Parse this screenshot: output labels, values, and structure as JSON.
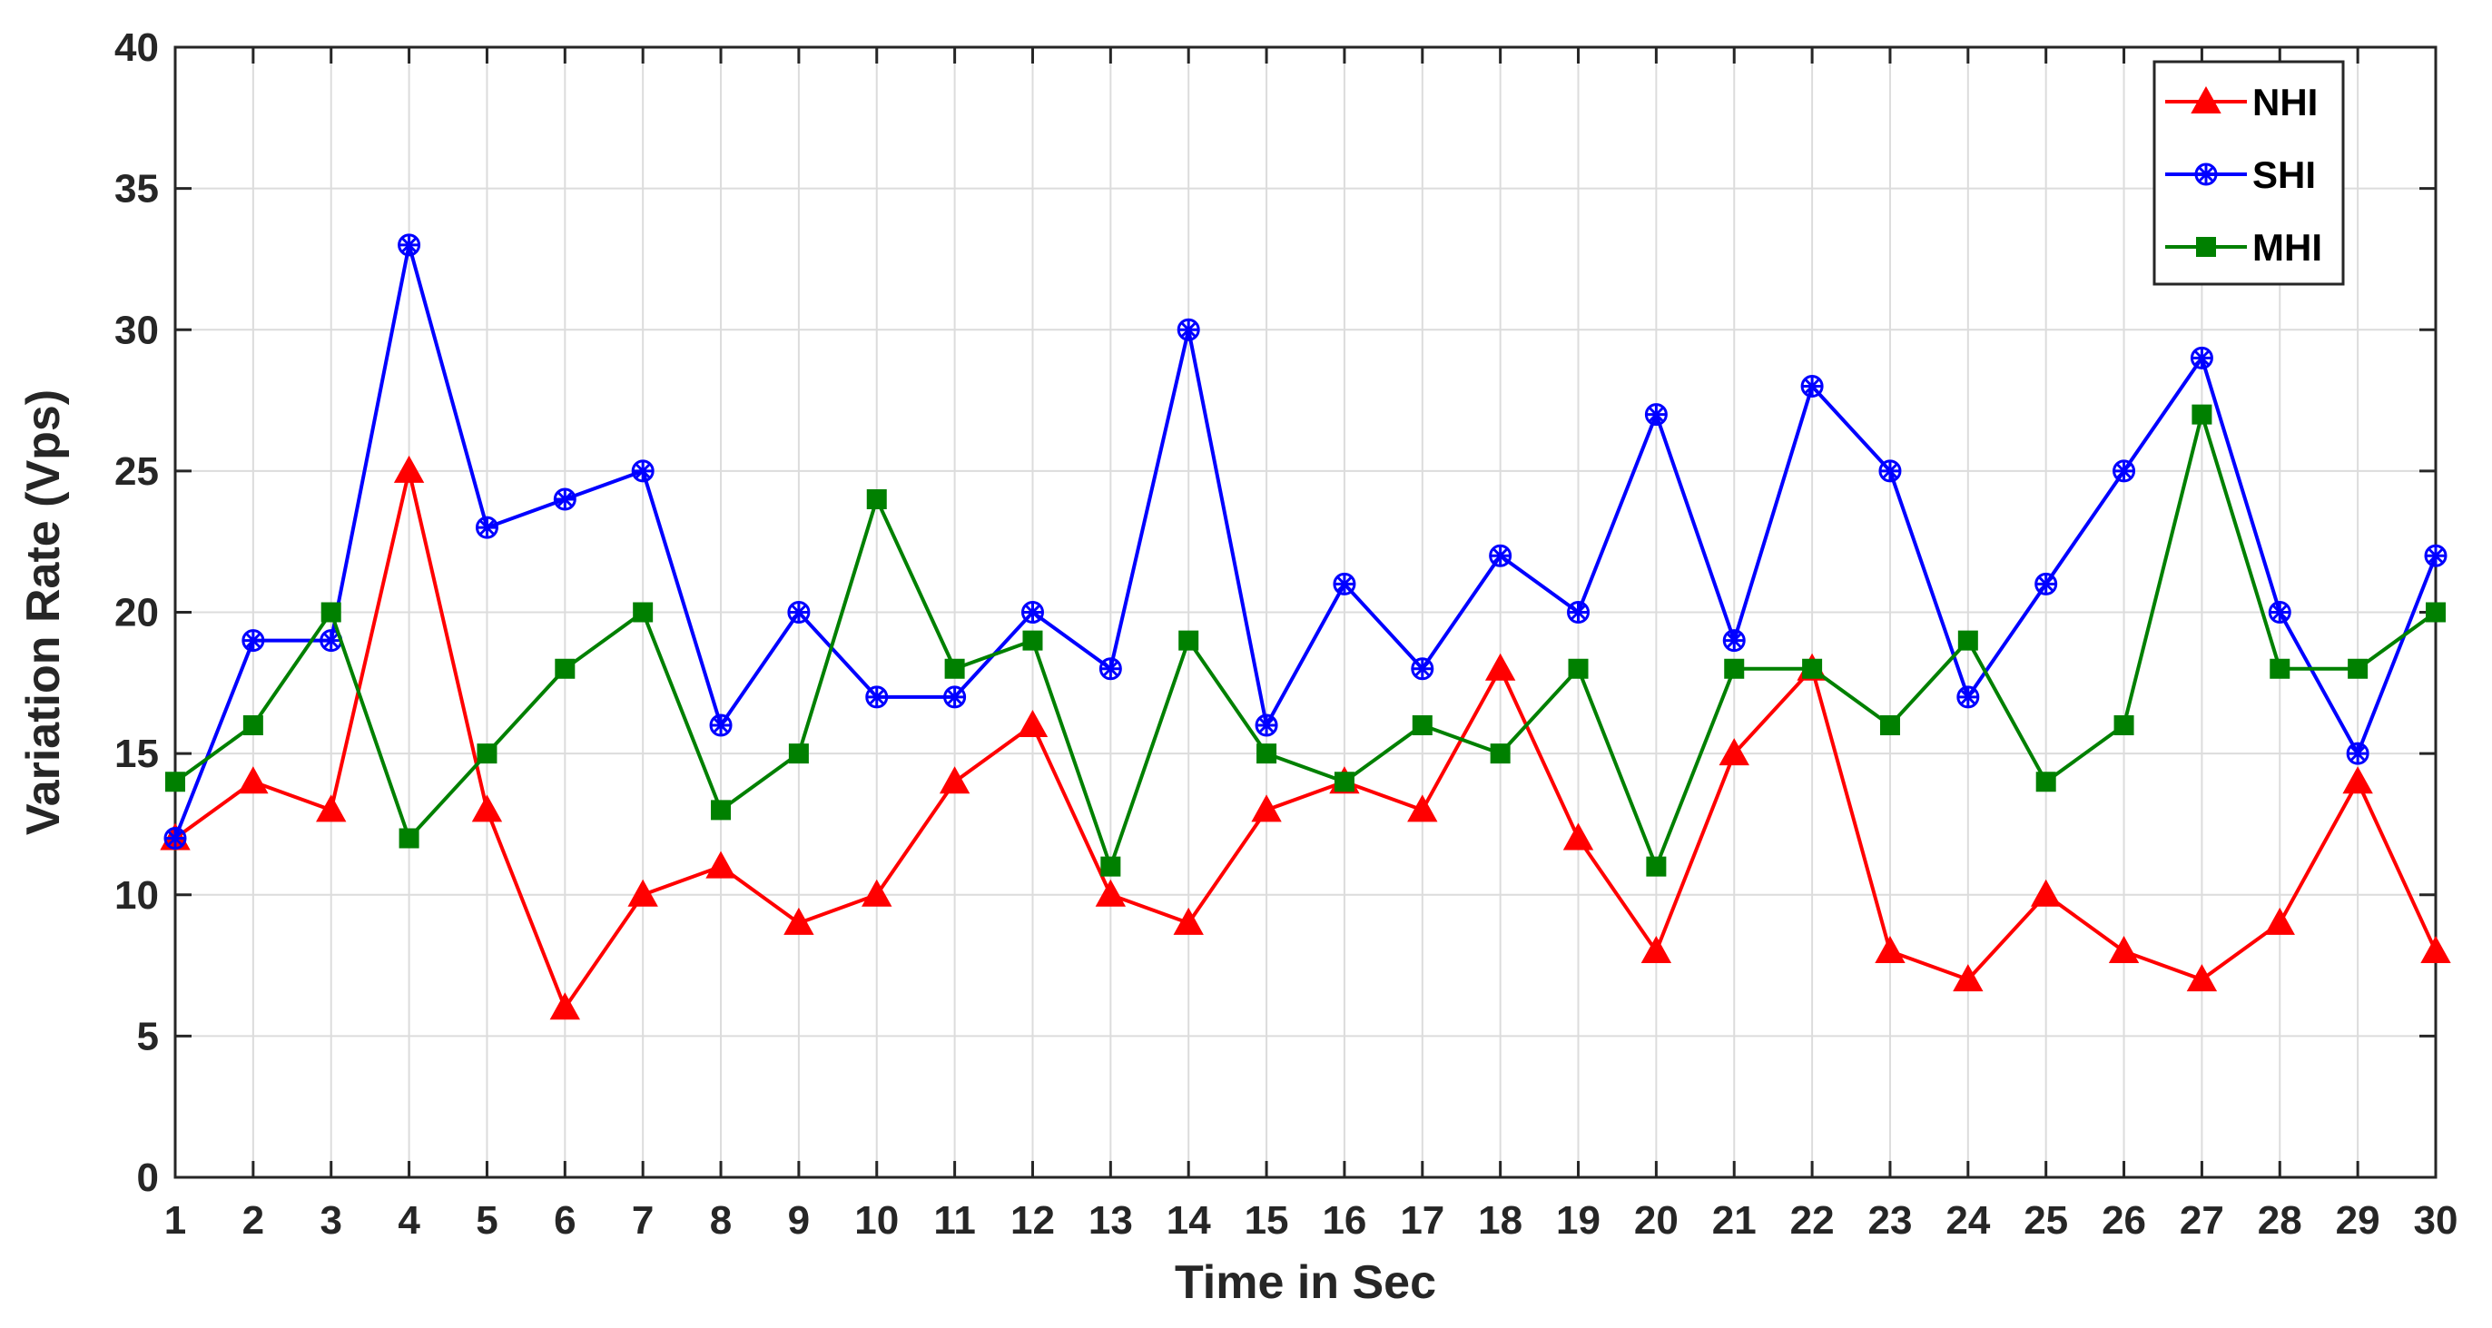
{
  "chart_data": {
    "type": "line",
    "title": "",
    "xlabel": "Time in Sec",
    "ylabel": "Variation Rate (Vps)",
    "x": [
      1,
      2,
      3,
      4,
      5,
      6,
      7,
      8,
      9,
      10,
      11,
      12,
      13,
      14,
      15,
      16,
      17,
      18,
      19,
      20,
      21,
      22,
      23,
      24,
      25,
      26,
      27,
      28,
      29,
      30
    ],
    "xlim": [
      1,
      30
    ],
    "ylim": [
      0,
      40
    ],
    "yticks": [
      0,
      5,
      10,
      15,
      20,
      25,
      30,
      35,
      40
    ],
    "grid": true,
    "legend_position": "top-right",
    "series": [
      {
        "name": "NHI",
        "color": "#ff0000",
        "marker": "triangle",
        "values": [
          12,
          14,
          13,
          25,
          13,
          6,
          10,
          11,
          9,
          10,
          14,
          16,
          10,
          9,
          13,
          14,
          13,
          18,
          12,
          8,
          15,
          18,
          8,
          7,
          10,
          8,
          7,
          9,
          14,
          8
        ]
      },
      {
        "name": "SHI",
        "color": "#0000ff",
        "marker": "asterisk-circle",
        "values": [
          12,
          19,
          19,
          33,
          23,
          24,
          25,
          16,
          20,
          17,
          17,
          20,
          18,
          30,
          16,
          21,
          18,
          22,
          20,
          27,
          19,
          28,
          25,
          17,
          21,
          25,
          29,
          20,
          15,
          22
        ]
      },
      {
        "name": "MHI",
        "color": "#008000",
        "marker": "square",
        "values": [
          14,
          16,
          20,
          12,
          15,
          18,
          20,
          13,
          15,
          24,
          18,
          19,
          11,
          19,
          15,
          14,
          16,
          15,
          18,
          11,
          18,
          18,
          16,
          19,
          14,
          16,
          27,
          18,
          18,
          20
        ]
      }
    ]
  }
}
